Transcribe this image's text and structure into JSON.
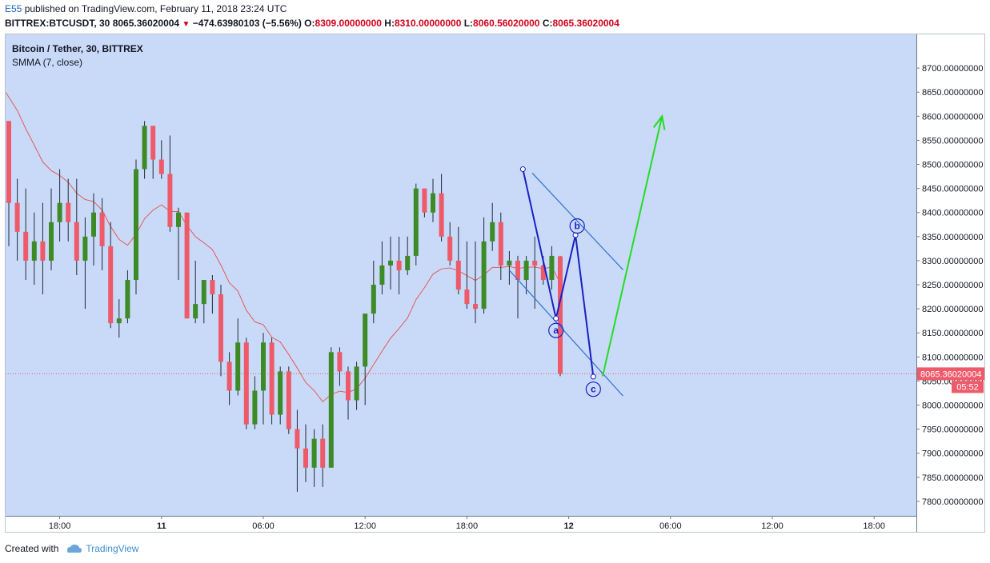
{
  "header": {
    "author": "E55",
    "published_text": "published on TradingView.com, February 11, 2018 23:24 UTC",
    "symbol": "BITTREX:BTCUSDT, 30",
    "last_price": "8065.36020004",
    "change_arrow": "▼",
    "change": "−474.63980103 (−5.56%)",
    "o_label": "O:",
    "o_value": "8309.00000000",
    "h_label": "H:",
    "h_value": "8310.00000000",
    "l_label": "L:",
    "l_value": "8060.56020000",
    "c_label": "C:",
    "c_value": "8065.36020004"
  },
  "legend": {
    "title": "Bitcoin / Tether, 30, BITTREX",
    "indicator": "SMMA (7, close)"
  },
  "price_tag": {
    "value": "8065.36020004",
    "countdown": "05:52"
  },
  "wave_labels": [
    "a",
    "b",
    "c"
  ],
  "footer": {
    "created_with": "Created with",
    "brand": "TradingView"
  },
  "colors": {
    "plot_bg": "#c8daf7",
    "up": "#3e8a27",
    "down": "#ee5a6a",
    "smma": "#e65a5a",
    "pattern": "#1a1fc4",
    "channel": "#3d77d3",
    "arrow": "#22dd22",
    "price_line": "#e06060"
  },
  "chart_data": {
    "type": "candlestick",
    "title": "Bitcoin / Tether, 30, BITTREX",
    "ylim": [
      7770,
      8770
    ],
    "y_ticks": [
      7800,
      7850,
      7900,
      7950,
      8000,
      8050,
      8100,
      8150,
      8200,
      8250,
      8300,
      8350,
      8400,
      8450,
      8500,
      8550,
      8600,
      8650,
      8700
    ],
    "y_tick_labels": [
      "7800.00000000",
      "7850.00000000",
      "7900.00000000",
      "7950.00000000",
      "8000.00000000",
      "8050.00000000",
      "8100.00000000",
      "8150.00000000",
      "8200.00000000",
      "8250.00000000",
      "8300.00000000",
      "8350.00000000",
      "8400.00000000",
      "8450.00000000",
      "8500.00000000",
      "8550.00000000",
      "8600.00000000",
      "8650.00000000",
      "8700.00000000"
    ],
    "x_tick_labels": [
      {
        "i": 6,
        "label": "18:00"
      },
      {
        "i": 18,
        "label": "11"
      },
      {
        "i": 30,
        "label": "06:00"
      },
      {
        "i": 42,
        "label": "12:00"
      },
      {
        "i": 54,
        "label": "18:00"
      },
      {
        "i": 66,
        "label": "12"
      },
      {
        "i": 78,
        "label": "06:00"
      },
      {
        "i": 90,
        "label": "12:00"
      },
      {
        "i": 102,
        "label": "18:00"
      }
    ],
    "candles": [
      [
        8590,
        8590,
        8330,
        8420
      ],
      [
        8420,
        8470,
        8300,
        8360
      ],
      [
        8360,
        8450,
        8260,
        8300
      ],
      [
        8300,
        8400,
        8250,
        8340
      ],
      [
        8340,
        8420,
        8230,
        8300
      ],
      [
        8300,
        8450,
        8280,
        8380
      ],
      [
        8380,
        8490,
        8340,
        8420
      ],
      [
        8420,
        8470,
        8340,
        8380
      ],
      [
        8380,
        8470,
        8270,
        8300
      ],
      [
        8300,
        8390,
        8200,
        8350
      ],
      [
        8350,
        8440,
        8290,
        8400
      ],
      [
        8400,
        8430,
        8280,
        8330
      ],
      [
        8330,
        8380,
        8160,
        8170
      ],
      [
        8170,
        8220,
        8140,
        8180
      ],
      [
        8180,
        8280,
        8170,
        8260
      ],
      [
        8260,
        8510,
        8230,
        8490
      ],
      [
        8490,
        8590,
        8470,
        8580
      ],
      [
        8580,
        8580,
        8470,
        8510
      ],
      [
        8510,
        8550,
        8470,
        8480
      ],
      [
        8480,
        8560,
        8360,
        8370
      ],
      [
        8370,
        8410,
        8260,
        8400
      ],
      [
        8400,
        8400,
        8180,
        8180
      ],
      [
        8180,
        8300,
        8170,
        8210
      ],
      [
        8210,
        8260,
        8170,
        8260
      ],
      [
        8260,
        8270,
        8190,
        8230
      ],
      [
        8230,
        8250,
        8060,
        8090
      ],
      [
        8090,
        8110,
        8000,
        8030
      ],
      [
        8030,
        8180,
        8020,
        8130
      ],
      [
        8130,
        8140,
        7950,
        7960
      ],
      [
        7960,
        8060,
        7950,
        8030
      ],
      [
        8030,
        8150,
        7960,
        8130
      ],
      [
        8130,
        8140,
        7960,
        7980
      ],
      [
        7980,
        8080,
        7960,
        8070
      ],
      [
        8070,
        8080,
        7940,
        7950
      ],
      [
        7950,
        7990,
        7820,
        7910
      ],
      [
        7910,
        7960,
        7840,
        7870
      ],
      [
        7870,
        7950,
        7830,
        7930
      ],
      [
        7930,
        7960,
        7830,
        7870
      ],
      [
        7870,
        8120,
        7870,
        8110
      ],
      [
        8110,
        8120,
        8040,
        8070
      ],
      [
        8070,
        8080,
        7970,
        8010
      ],
      [
        8010,
        8090,
        7990,
        8080
      ],
      [
        8080,
        8180,
        8000,
        8190
      ],
      [
        8190,
        8300,
        8170,
        8250
      ],
      [
        8250,
        8340,
        8230,
        8290
      ],
      [
        8290,
        8350,
        8240,
        8300
      ],
      [
        8300,
        8350,
        8230,
        8280
      ],
      [
        8280,
        8350,
        8270,
        8310
      ],
      [
        8310,
        8460,
        8290,
        8450
      ],
      [
        8450,
        8450,
        8390,
        8400
      ],
      [
        8400,
        8470,
        8380,
        8440
      ],
      [
        8440,
        8480,
        8340,
        8350
      ],
      [
        8350,
        8380,
        8290,
        8300
      ],
      [
        8300,
        8370,
        8230,
        8240
      ],
      [
        8240,
        8340,
        8200,
        8210
      ],
      [
        8210,
        8340,
        8170,
        8200
      ],
      [
        8200,
        8390,
        8190,
        8340
      ],
      [
        8340,
        8420,
        8320,
        8380
      ],
      [
        8380,
        8400,
        8260,
        8290
      ],
      [
        8290,
        8320,
        8250,
        8300
      ],
      [
        8300,
        8310,
        8180,
        8260
      ],
      [
        8260,
        8310,
        8230,
        8300
      ],
      [
        8300,
        8350,
        8200,
        8290
      ],
      [
        8290,
        8310,
        8250,
        8260
      ],
      [
        8260,
        8330,
        8240,
        8310
      ],
      [
        8309,
        8310,
        8060,
        8065
      ]
    ],
    "smma_values": [
      8650,
      8612,
      8574,
      8540,
      8505,
      8487,
      8477,
      8463,
      8440,
      8427,
      8423,
      8405,
      8371,
      8344,
      8332,
      8355,
      8387,
      8405,
      8416,
      8402,
      8402,
      8373,
      8350,
      8337,
      8323,
      8291,
      8254,
      8237,
      8197,
      8173,
      8167,
      8141,
      8131,
      8105,
      8077,
      8047,
      8030,
      8007,
      8022,
      8029,
      8026,
      8034,
      8056,
      8084,
      8112,
      8139,
      8159,
      8181,
      8219,
      8244,
      8272,
      8283,
      8285,
      8279,
      8269,
      8259,
      8270,
      8286,
      8286,
      8288,
      8284,
      8286,
      8287,
      8283,
      8287,
      8254
    ],
    "annotations": {
      "abc_path": [
        [
          60.6,
          8490
        ],
        [
          64.5,
          8180
        ],
        [
          66.8,
          8353
        ],
        [
          68.9,
          8059
        ]
      ],
      "wave_label_points": [
        [
          64.5,
          8155
        ],
        [
          67.0,
          8372
        ],
        [
          68.9,
          8033
        ]
      ],
      "channel_upper": [
        [
          61.7,
          8482
        ],
        [
          72.4,
          8281
        ]
      ],
      "channel_lower": [
        [
          59.0,
          8280
        ],
        [
          72.4,
          8019
        ]
      ],
      "target_arrow": [
        [
          70.0,
          8060
        ],
        [
          77.0,
          8600
        ]
      ]
    }
  }
}
